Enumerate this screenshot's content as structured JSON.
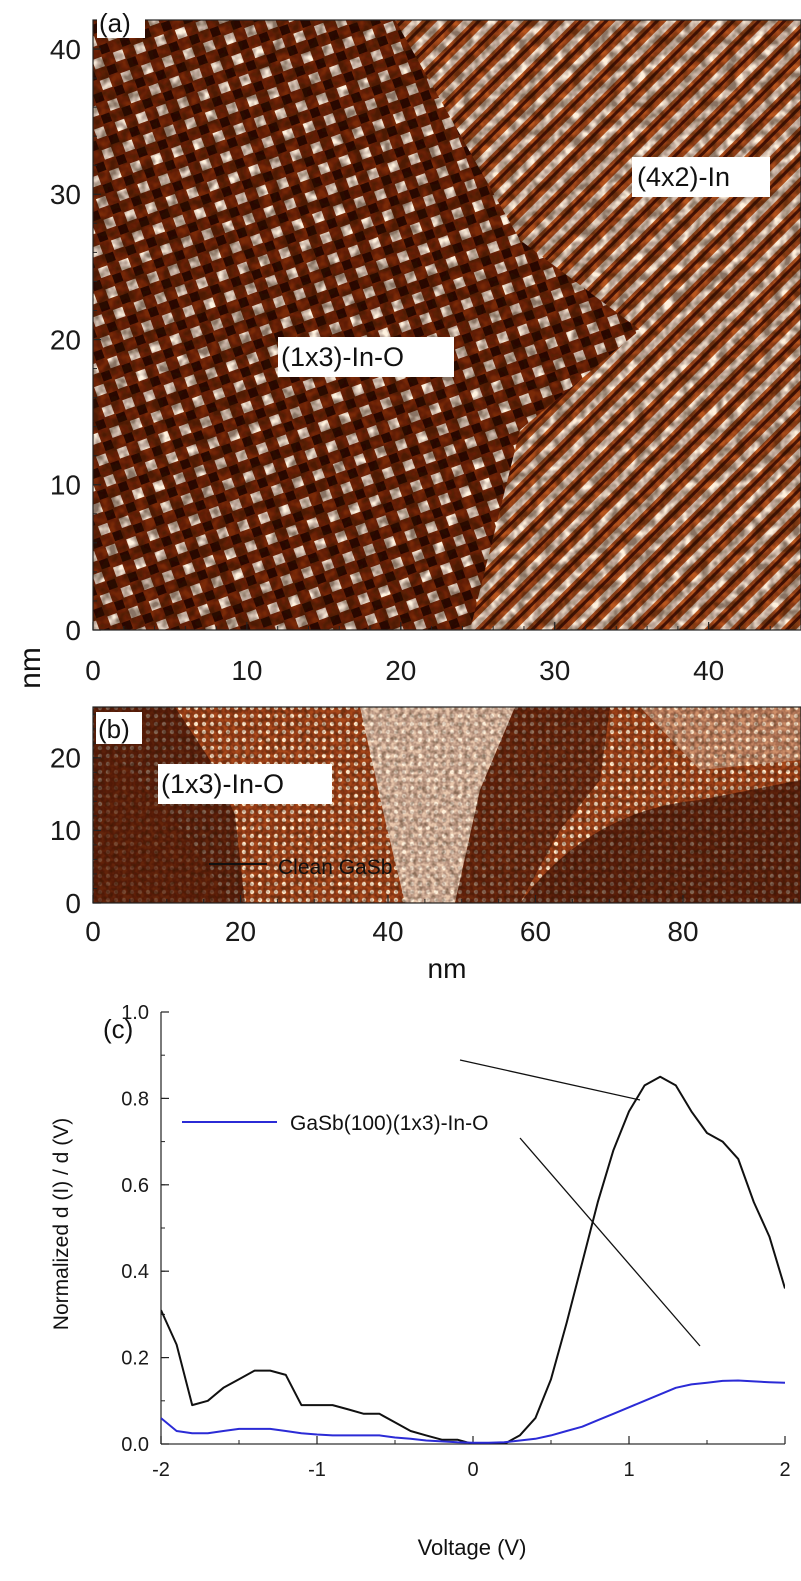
{
  "chart_data": [
    {
      "type": "heatmap",
      "panel_label": "(a)",
      "xlabel": "",
      "ylabel": "nm",
      "xlim": [
        0,
        46
      ],
      "ylim": [
        0,
        42
      ],
      "x_ticks": [
        "0",
        "10",
        "20",
        "30",
        "40"
      ],
      "y_ticks": [
        "0",
        "10",
        "20",
        "30",
        "40"
      ],
      "annotations": [
        "(1x3)-In-O",
        "(4x2)-In"
      ],
      "colors": {
        "dark": "#3a0f02",
        "mid": "#b8561e",
        "light": "#fff4e3"
      }
    },
    {
      "type": "heatmap",
      "panel_label": "(b)",
      "xlabel": "nm",
      "ylabel": "",
      "xlim": [
        0,
        96
      ],
      "ylim": [
        0,
        27
      ],
      "x_ticks": [
        "0",
        "20",
        "40",
        "60",
        "80"
      ],
      "y_ticks": [
        "0",
        "10",
        "20"
      ],
      "annotations": [
        "(1x3)-In-O"
      ],
      "colors": {
        "dark": "#3a0f02",
        "mid": "#b8561e",
        "light": "#fff4e3"
      }
    },
    {
      "type": "line",
      "panel_label": "(c)",
      "xlabel": "Voltage (V)",
      "ylabel": "Normalized d (I) / d (V)",
      "xlim": [
        -2,
        2
      ],
      "ylim": [
        0,
        1.0
      ],
      "x_ticks": [
        "-2",
        "-1",
        "0",
        "1",
        "2"
      ],
      "y_ticks": [
        "0.0",
        "0.2",
        "0.4",
        "0.6",
        "0.8",
        "1.0"
      ],
      "series": [
        {
          "name": "Clean GaSb",
          "color": "#111111",
          "x": [
            -2.0,
            -1.9,
            -1.8,
            -1.7,
            -1.6,
            -1.5,
            -1.4,
            -1.3,
            -1.2,
            -1.1,
            -1.0,
            -0.9,
            -0.8,
            -0.7,
            -0.6,
            -0.5,
            -0.4,
            -0.3,
            -0.2,
            -0.1,
            0.0,
            0.1,
            0.2,
            0.3,
            0.4,
            0.5,
            0.6,
            0.7,
            0.8,
            0.9,
            1.0,
            1.1,
            1.2,
            1.3,
            1.4,
            1.5,
            1.6,
            1.7,
            1.8,
            1.9,
            2.0
          ],
          "y": [
            0.31,
            0.23,
            0.09,
            0.1,
            0.13,
            0.15,
            0.17,
            0.17,
            0.16,
            0.09,
            0.09,
            0.09,
            0.08,
            0.07,
            0.07,
            0.05,
            0.03,
            0.02,
            0.01,
            0.01,
            0.0,
            0.0,
            0.0,
            0.02,
            0.06,
            0.15,
            0.28,
            0.42,
            0.56,
            0.68,
            0.77,
            0.83,
            0.85,
            0.83,
            0.77,
            0.72,
            0.7,
            0.66,
            0.56,
            0.48,
            0.36
          ]
        },
        {
          "name": "GaSb(100)(1x3)-In-O",
          "color": "#2b2bd6",
          "x": [
            -2.0,
            -1.9,
            -1.8,
            -1.7,
            -1.6,
            -1.5,
            -1.4,
            -1.3,
            -1.2,
            -1.1,
            -1.0,
            -0.9,
            -0.8,
            -0.7,
            -0.6,
            -0.5,
            -0.4,
            -0.3,
            -0.2,
            -0.1,
            0.0,
            0.1,
            0.2,
            0.3,
            0.4,
            0.5,
            0.6,
            0.7,
            0.8,
            0.9,
            1.0,
            1.1,
            1.2,
            1.3,
            1.4,
            1.5,
            1.6,
            1.7,
            1.8,
            1.9,
            2.0
          ],
          "y": [
            0.06,
            0.03,
            0.025,
            0.025,
            0.03,
            0.035,
            0.035,
            0.035,
            0.03,
            0.025,
            0.022,
            0.02,
            0.02,
            0.02,
            0.02,
            0.015,
            0.012,
            0.008,
            0.006,
            0.004,
            0.003,
            0.003,
            0.004,
            0.008,
            0.012,
            0.02,
            0.03,
            0.04,
            0.055,
            0.07,
            0.085,
            0.1,
            0.115,
            0.13,
            0.138,
            0.142,
            0.146,
            0.147,
            0.145,
            0.143,
            0.142
          ]
        }
      ]
    }
  ]
}
